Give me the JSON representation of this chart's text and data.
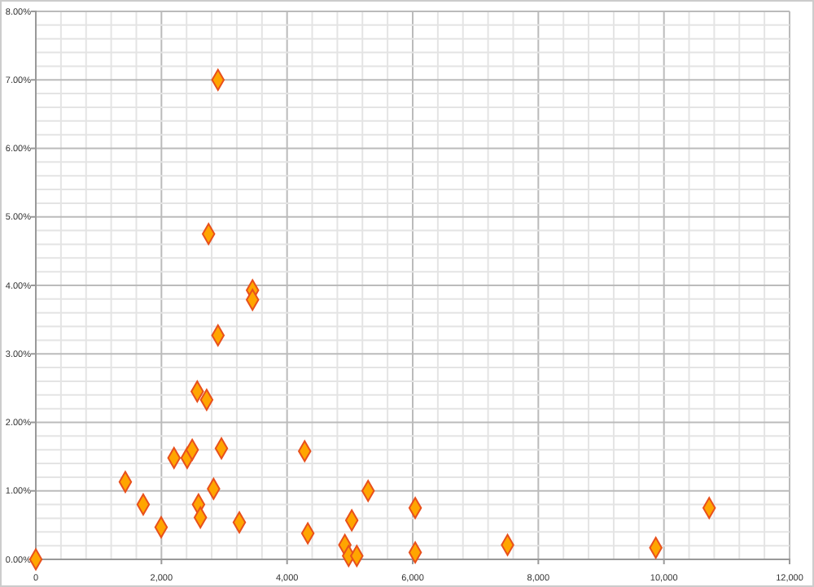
{
  "chart_data": {
    "type": "scatter",
    "marker": "diamond",
    "grid": true,
    "x": [
      0,
      1425,
      1710,
      1995,
      2200,
      2410,
      2490,
      2570,
      2590,
      2620,
      2720,
      2750,
      2830,
      2900,
      2900,
      2955,
      3240,
      3450,
      3450,
      4280,
      4330,
      4920,
      4980,
      5030,
      5110,
      5290,
      6040,
      6040,
      7510,
      9870,
      10720
    ],
    "series": [
      {
        "color": "#ffa500",
        "values": [
          0,
          1.13,
          0.8,
          0.47,
          1.48,
          1.48,
          1.6,
          2.45,
          0.8,
          0.61,
          2.33,
          4.75,
          1.03,
          7.0,
          3.27,
          1.62,
          0.54,
          3.93,
          3.79,
          1.58,
          0.38,
          0.21,
          0.05,
          0.57,
          0.05,
          1.0,
          0.75,
          0.1,
          0.21,
          0.17,
          0.75
        ]
      }
    ],
    "xlim": [
      0,
      12000
    ],
    "ylim": [
      0,
      8
    ],
    "xticks": [
      0,
      {
        "value": 2000,
        "label": "2,000"
      },
      {
        "value": 4000,
        "label": "4,000"
      },
      {
        "value": 6000,
        "label": "6,000"
      },
      {
        "value": 8000,
        "label": "8,000"
      },
      {
        "value": 10000,
        "label": "10,000"
      },
      {
        "value": 12000,
        "label": "12,000"
      }
    ],
    "yticks": [
      {
        "value": 0,
        "label": "0.00%"
      },
      {
        "value": 1,
        "label": "1.00%"
      },
      {
        "value": 2,
        "label": "2.00%"
      },
      {
        "value": 3,
        "label": "3.00%"
      },
      {
        "value": 4,
        "label": "4.00%"
      },
      {
        "value": 5,
        "label": "5.00%"
      },
      {
        "value": 6,
        "label": "6.00%"
      },
      {
        "value": 7,
        "label": "7.00%"
      },
      {
        "value": 8,
        "label": "8.00%"
      }
    ]
  }
}
